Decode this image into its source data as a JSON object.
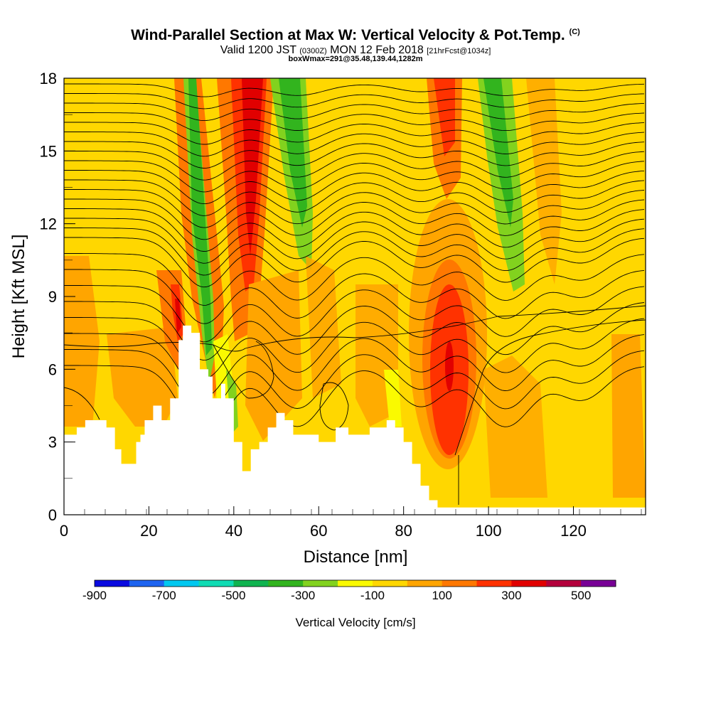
{
  "chart_data": {
    "type": "heatmap",
    "title": "Wind-Parallel Section at Max W: Vertical Velocity & Pot.Temp.",
    "title_mark": "(C)",
    "subtitle_main": "Valid 1200 JST",
    "subtitle_z": "(0300Z)",
    "subtitle_date": "MON 12 Feb 2018",
    "subtitle_fcst": "[21hrFcst@1034z]",
    "subtitle2": "boxWmax=291@35.48,139.44,1282m",
    "xlabel": "Distance [nm]",
    "ylabel": "Height [Kft MSL]",
    "xlim": [
      0,
      137
    ],
    "ylim": [
      0,
      18
    ],
    "x_ticks": [
      0,
      20,
      40,
      60,
      80,
      100,
      120
    ],
    "y_ticks": [
      0,
      3,
      6,
      9,
      12,
      15,
      18
    ],
    "colorbar": {
      "label": "Vertical Velocity [cm/s]",
      "tick_labels": [
        -900,
        -700,
        -500,
        -300,
        -100,
        100,
        300,
        500
      ],
      "colors": [
        "#0a0ae0",
        "#1e64f0",
        "#00c8f0",
        "#10dcb4",
        "#10b450",
        "#32b41e",
        "#82d21e",
        "#fafa00",
        "#ffd700",
        "#ffa500",
        "#ff7800",
        "#ff3200",
        "#e10000",
        "#b4003c",
        "#780096"
      ]
    },
    "vertical_velocity_features": [
      {
        "x_nm": 24,
        "z_kft": 7.5,
        "w_cm_s": 350
      },
      {
        "x_nm": 33,
        "z_kft": 12,
        "w_cm_s": -400
      },
      {
        "x_nm": 44,
        "z_kft": 13,
        "w_cm_s": 400
      },
      {
        "x_nm": 55,
        "z_kft": 14,
        "w_cm_s": -350
      },
      {
        "x_nm": 90,
        "z_kft": 6,
        "w_cm_s": 400
      },
      {
        "x_nm": 104,
        "z_kft": 14,
        "w_cm_s": -300
      }
    ],
    "terrain_top_kft": [
      [
        0,
        3.3
      ],
      [
        3,
        3.6
      ],
      [
        5,
        3.9
      ],
      [
        10,
        3.6
      ],
      [
        12,
        2.7
      ],
      [
        13.5,
        2.1
      ],
      [
        16,
        2.1
      ],
      [
        17,
        3.0
      ],
      [
        18,
        3.3
      ],
      [
        19,
        3.9
      ],
      [
        21,
        4.5
      ],
      [
        23,
        3.9
      ],
      [
        25,
        4.8
      ],
      [
        27,
        7.2
      ],
      [
        28,
        7.8
      ],
      [
        30,
        7.5
      ],
      [
        32,
        6.0
      ],
      [
        34,
        5.7
      ],
      [
        35,
        4.8
      ],
      [
        37,
        5.4
      ],
      [
        38,
        4.8
      ],
      [
        40,
        3.0
      ],
      [
        42,
        1.8
      ],
      [
        44,
        2.7
      ],
      [
        46,
        3.0
      ],
      [
        48,
        3.6
      ],
      [
        50,
        4.2
      ],
      [
        52,
        3.9
      ],
      [
        54,
        3.3
      ],
      [
        60,
        3.0
      ],
      [
        64,
        3.6
      ],
      [
        67,
        3.3
      ],
      [
        72,
        3.6
      ],
      [
        76,
        3.9
      ],
      [
        78,
        3.6
      ],
      [
        80,
        3.0
      ],
      [
        82,
        2.1
      ],
      [
        84,
        1.2
      ],
      [
        86,
        0.6
      ],
      [
        88,
        0.3
      ],
      [
        137,
        0.3
      ]
    ]
  }
}
